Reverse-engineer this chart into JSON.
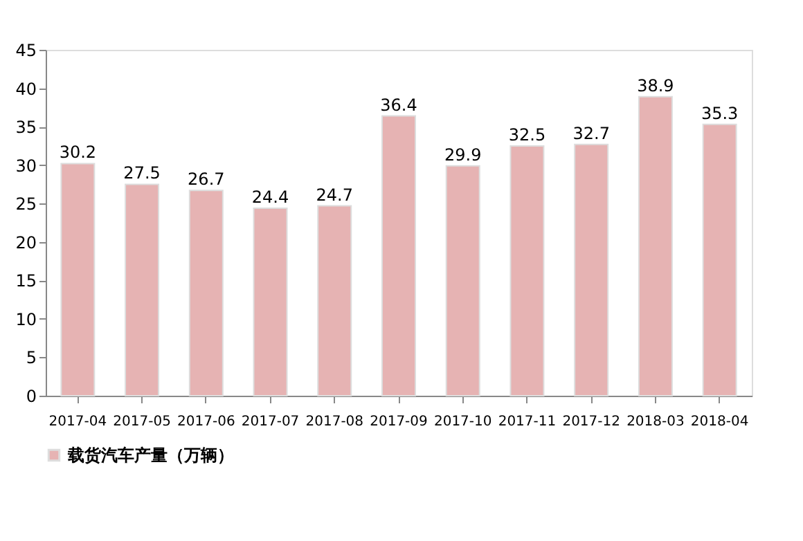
{
  "chart_data": {
    "type": "bar",
    "categories": [
      "2017-04",
      "2017-05",
      "2017-06",
      "2017-07",
      "2017-08",
      "2017-09",
      "2017-10",
      "2017-11",
      "2017-12",
      "2018-03",
      "2018-04"
    ],
    "series": [
      {
        "name": "载货汽车产量（万辆）",
        "color": "#e6b3b3",
        "values": [
          30.2,
          27.5,
          26.7,
          24.4,
          24.7,
          36.4,
          29.9,
          32.5,
          32.7,
          38.9,
          35.3
        ]
      }
    ],
    "ylim": [
      0,
      45
    ],
    "yticks": [
      0,
      5,
      10,
      15,
      20,
      25,
      30,
      35,
      40,
      45
    ],
    "data_labels": true,
    "grid": false,
    "legend": "bottom left"
  }
}
